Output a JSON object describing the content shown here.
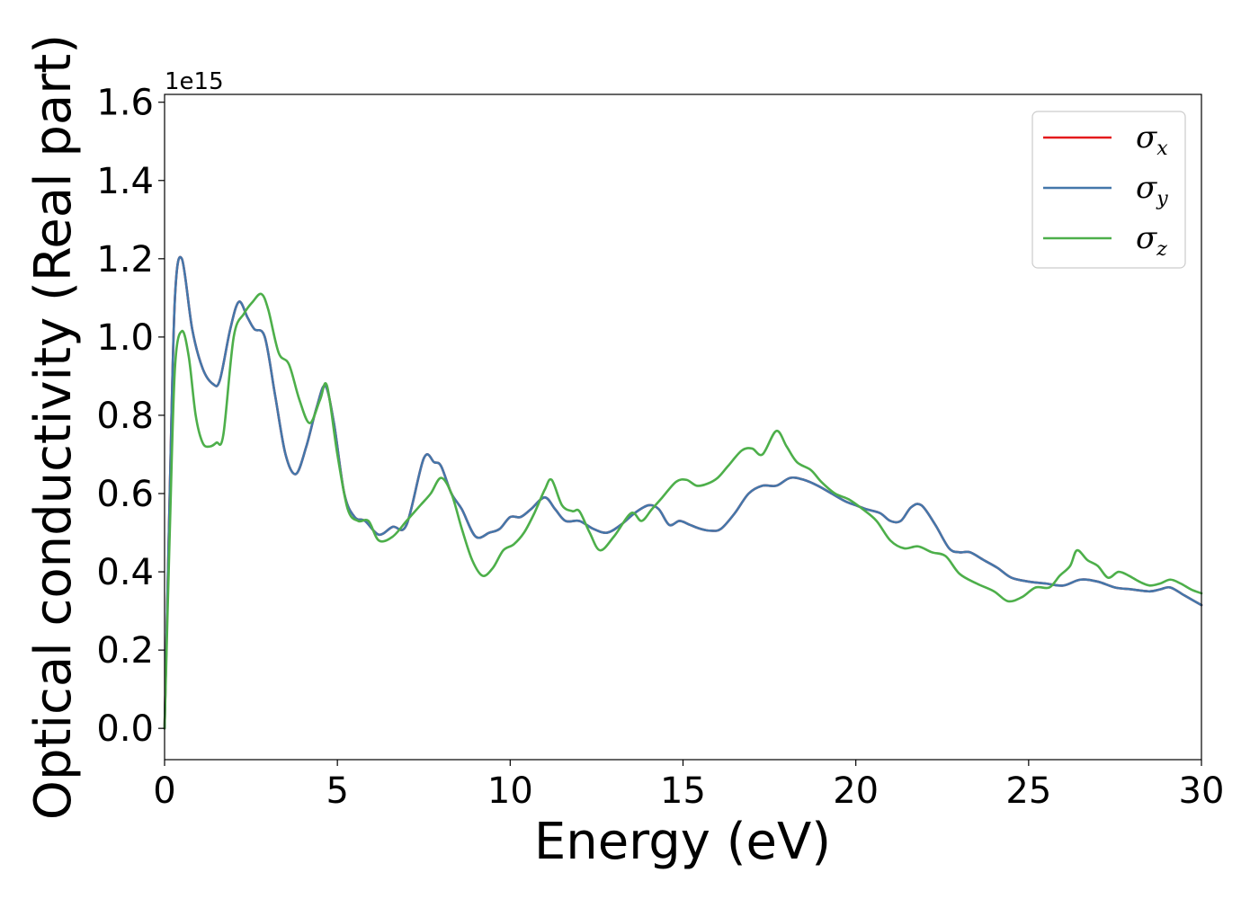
{
  "chart_data": {
    "type": "line",
    "xlabel": "Energy (eV)",
    "ylabel": "Optical conductivity (Real part)",
    "offset_text": "1e15",
    "xlim": [
      0,
      30
    ],
    "ylim": [
      -0.08,
      1.62
    ],
    "xticks": [
      0,
      5,
      10,
      15,
      20,
      25,
      30
    ],
    "xtick_labels": [
      "0",
      "5",
      "10",
      "15",
      "20",
      "25",
      "30"
    ],
    "yticks": [
      0.0,
      0.2,
      0.4,
      0.6,
      0.8,
      1.0,
      1.2,
      1.4,
      1.6
    ],
    "ytick_labels": [
      "0.0",
      "0.2",
      "0.4",
      "0.6",
      "0.8",
      "1.0",
      "1.2",
      "1.4",
      "1.6"
    ],
    "grid": false,
    "legend_position": "top-right",
    "series": [
      {
        "name": "σx",
        "legend_symbol": "σ",
        "legend_subscript": "x",
        "color": "#e41a1c",
        "x": [
          0,
          0.15,
          0.3,
          0.5,
          0.8,
          1.1,
          1.4,
          1.6,
          1.9,
          2.15,
          2.4,
          2.6,
          2.9,
          3.2,
          3.5,
          3.8,
          4.1,
          4.4,
          4.65,
          4.9,
          5.2,
          5.5,
          5.8,
          6.2,
          6.6,
          7.0,
          7.5,
          7.8,
          8.0,
          8.3,
          8.6,
          9.0,
          9.4,
          9.7,
          10.0,
          10.3,
          10.6,
          11.0,
          11.3,
          11.6,
          12.0,
          12.4,
          12.8,
          13.2,
          13.6,
          14.0,
          14.3,
          14.6,
          14.9,
          15.2,
          15.5,
          15.8,
          16.1,
          16.5,
          16.9,
          17.3,
          17.7,
          18.1,
          18.5,
          18.9,
          19.3,
          19.7,
          20.0,
          20.3,
          20.7,
          21.0,
          21.3,
          21.6,
          21.9,
          22.3,
          22.7,
          23.0,
          23.3,
          23.7,
          24.1,
          24.5,
          25.0,
          25.5,
          26.0,
          26.5,
          27.0,
          27.5,
          28.0,
          28.5,
          28.8,
          29.1,
          29.5,
          29.8,
          30.0
        ],
        "y": [
          0.0,
          0.6,
          1.1,
          1.2,
          1.02,
          0.92,
          0.88,
          0.89,
          1.02,
          1.09,
          1.05,
          1.02,
          1.0,
          0.85,
          0.7,
          0.65,
          0.72,
          0.82,
          0.875,
          0.78,
          0.6,
          0.54,
          0.53,
          0.495,
          0.515,
          0.52,
          0.69,
          0.68,
          0.67,
          0.6,
          0.56,
          0.49,
          0.5,
          0.51,
          0.54,
          0.54,
          0.56,
          0.59,
          0.56,
          0.53,
          0.53,
          0.51,
          0.5,
          0.52,
          0.55,
          0.57,
          0.56,
          0.52,
          0.53,
          0.52,
          0.51,
          0.505,
          0.51,
          0.55,
          0.6,
          0.62,
          0.62,
          0.64,
          0.635,
          0.62,
          0.6,
          0.58,
          0.57,
          0.56,
          0.55,
          0.53,
          0.53,
          0.565,
          0.57,
          0.52,
          0.46,
          0.45,
          0.45,
          0.43,
          0.41,
          0.385,
          0.375,
          0.37,
          0.365,
          0.38,
          0.375,
          0.36,
          0.355,
          0.35,
          0.355,
          0.36,
          0.34,
          0.325,
          0.315
        ]
      },
      {
        "name": "σy",
        "legend_symbol": "σ",
        "legend_subscript": "y",
        "color": "#4477aa",
        "x": [
          0,
          0.15,
          0.3,
          0.5,
          0.8,
          1.1,
          1.4,
          1.6,
          1.9,
          2.15,
          2.4,
          2.6,
          2.9,
          3.2,
          3.5,
          3.8,
          4.1,
          4.4,
          4.65,
          4.9,
          5.2,
          5.5,
          5.8,
          6.2,
          6.6,
          7.0,
          7.5,
          7.8,
          8.0,
          8.3,
          8.6,
          9.0,
          9.4,
          9.7,
          10.0,
          10.3,
          10.6,
          11.0,
          11.3,
          11.6,
          12.0,
          12.4,
          12.8,
          13.2,
          13.6,
          14.0,
          14.3,
          14.6,
          14.9,
          15.2,
          15.5,
          15.8,
          16.1,
          16.5,
          16.9,
          17.3,
          17.7,
          18.1,
          18.5,
          18.9,
          19.3,
          19.7,
          20.0,
          20.3,
          20.7,
          21.0,
          21.3,
          21.6,
          21.9,
          22.3,
          22.7,
          23.0,
          23.3,
          23.7,
          24.1,
          24.5,
          25.0,
          25.5,
          26.0,
          26.5,
          27.0,
          27.5,
          28.0,
          28.5,
          28.8,
          29.1,
          29.5,
          29.8,
          30.0
        ],
        "y": [
          0.0,
          0.6,
          1.1,
          1.2,
          1.02,
          0.92,
          0.88,
          0.89,
          1.02,
          1.09,
          1.05,
          1.02,
          1.0,
          0.85,
          0.7,
          0.65,
          0.72,
          0.82,
          0.875,
          0.78,
          0.6,
          0.54,
          0.53,
          0.495,
          0.515,
          0.52,
          0.69,
          0.68,
          0.67,
          0.6,
          0.56,
          0.49,
          0.5,
          0.51,
          0.54,
          0.54,
          0.56,
          0.59,
          0.56,
          0.53,
          0.53,
          0.51,
          0.5,
          0.52,
          0.55,
          0.57,
          0.56,
          0.52,
          0.53,
          0.52,
          0.51,
          0.505,
          0.51,
          0.55,
          0.6,
          0.62,
          0.62,
          0.64,
          0.635,
          0.62,
          0.6,
          0.58,
          0.57,
          0.56,
          0.55,
          0.53,
          0.53,
          0.565,
          0.57,
          0.52,
          0.46,
          0.45,
          0.45,
          0.43,
          0.41,
          0.385,
          0.375,
          0.37,
          0.365,
          0.38,
          0.375,
          0.36,
          0.355,
          0.35,
          0.355,
          0.36,
          0.34,
          0.325,
          0.315
        ]
      },
      {
        "name": "σz",
        "legend_symbol": "σ",
        "legend_subscript": "z",
        "color": "#4daf4a",
        "x": [
          0,
          0.15,
          0.3,
          0.5,
          0.7,
          0.9,
          1.1,
          1.3,
          1.5,
          1.7,
          2.0,
          2.3,
          2.55,
          2.8,
          3.0,
          3.3,
          3.6,
          3.9,
          4.2,
          4.5,
          4.7,
          5.0,
          5.3,
          5.6,
          5.9,
          6.2,
          6.6,
          7.0,
          7.4,
          7.7,
          8.0,
          8.3,
          8.6,
          8.9,
          9.2,
          9.5,
          9.8,
          10.1,
          10.4,
          10.7,
          11.0,
          11.2,
          11.5,
          11.8,
          12.0,
          12.3,
          12.6,
          13.0,
          13.5,
          13.8,
          14.1,
          14.4,
          14.8,
          15.1,
          15.4,
          15.7,
          16.0,
          16.3,
          16.7,
          17.0,
          17.3,
          17.7,
          18.0,
          18.3,
          18.7,
          19.0,
          19.4,
          19.8,
          20.2,
          20.6,
          21.0,
          21.4,
          21.8,
          22.2,
          22.6,
          23.0,
          23.5,
          24.0,
          24.4,
          24.8,
          25.2,
          25.6,
          25.9,
          26.2,
          26.4,
          26.7,
          27.0,
          27.3,
          27.6,
          27.9,
          28.2,
          28.5,
          28.8,
          29.1,
          29.4,
          29.7,
          30.0
        ],
        "y": [
          0.0,
          0.5,
          0.92,
          1.015,
          0.95,
          0.8,
          0.73,
          0.72,
          0.73,
          0.75,
          1.0,
          1.06,
          1.09,
          1.11,
          1.07,
          0.96,
          0.93,
          0.84,
          0.78,
          0.84,
          0.875,
          0.7,
          0.56,
          0.53,
          0.53,
          0.48,
          0.49,
          0.53,
          0.57,
          0.6,
          0.64,
          0.6,
          0.51,
          0.43,
          0.39,
          0.41,
          0.455,
          0.47,
          0.5,
          0.55,
          0.61,
          0.635,
          0.57,
          0.555,
          0.555,
          0.5,
          0.455,
          0.49,
          0.55,
          0.53,
          0.56,
          0.59,
          0.63,
          0.635,
          0.62,
          0.625,
          0.64,
          0.67,
          0.71,
          0.715,
          0.7,
          0.76,
          0.72,
          0.68,
          0.66,
          0.63,
          0.6,
          0.585,
          0.56,
          0.53,
          0.48,
          0.46,
          0.465,
          0.45,
          0.44,
          0.395,
          0.37,
          0.35,
          0.325,
          0.335,
          0.36,
          0.36,
          0.39,
          0.415,
          0.455,
          0.43,
          0.415,
          0.385,
          0.4,
          0.39,
          0.375,
          0.365,
          0.37,
          0.38,
          0.37,
          0.355,
          0.345
        ]
      }
    ]
  }
}
